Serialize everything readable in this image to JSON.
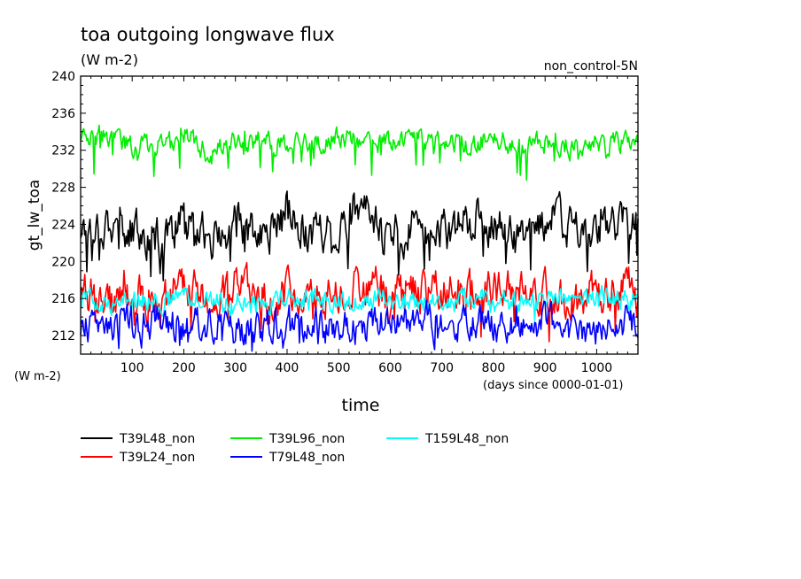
{
  "title": "toa outgoing longwave flux",
  "subtitle": "(W m-2)",
  "run_label": "non_control-5N",
  "units_bottom_left": "(W m-2)",
  "x_units": "(days since 0000-01-01)",
  "chart_data": {
    "type": "line",
    "title": "toa outgoing longwave flux",
    "xlabel": "time",
    "ylabel": "gt_lw_toa",
    "xlim": [
      0,
      1080
    ],
    "ylim": [
      210,
      240
    ],
    "x_ticks": [
      100,
      200,
      300,
      400,
      500,
      600,
      700,
      800,
      900,
      1000
    ],
    "y_ticks": [
      212,
      216,
      220,
      224,
      228,
      232,
      236,
      240
    ],
    "legend_position": "bottom",
    "series": [
      {
        "name": "T39L48_non",
        "color": "#000000",
        "mean": 223.5,
        "amplitude": 2.0,
        "dips": 4.0,
        "x": [
          0,
          50,
          100,
          150,
          200,
          250,
          300,
          350,
          400,
          450,
          500,
          550,
          600,
          650,
          700,
          750,
          800,
          850,
          900,
          950,
          1000,
          1050,
          1080
        ],
        "values": [
          223.5,
          224.5,
          223,
          222.5,
          224.5,
          222,
          224,
          222.5,
          225,
          223,
          223.5,
          225,
          222.5,
          224,
          223,
          224.5,
          224,
          222.5,
          225,
          223.5,
          222.5,
          224.5,
          223.5
        ]
      },
      {
        "name": "T39L96_non",
        "color": "#00ee00",
        "mean": 233.0,
        "amplitude": 1.0,
        "dips": 3.5,
        "x": [
          0,
          50,
          100,
          150,
          200,
          250,
          300,
          350,
          400,
          450,
          500,
          550,
          600,
          650,
          700,
          750,
          800,
          850,
          900,
          950,
          1000,
          1050,
          1080
        ],
        "values": [
          233.5,
          233.5,
          232.5,
          232.5,
          234,
          231.5,
          233,
          233,
          233,
          232.5,
          233.5,
          233,
          233,
          233,
          233,
          232.5,
          233.5,
          232.5,
          233,
          232.5,
          233,
          233,
          232.5
        ]
      },
      {
        "name": "T39L24_non",
        "color": "#ff0000",
        "mean": 216.5,
        "amplitude": 2.0,
        "dips": 3.0,
        "x": [
          0,
          50,
          100,
          150,
          200,
          250,
          300,
          350,
          400,
          450,
          500,
          550,
          600,
          650,
          700,
          750,
          800,
          850,
          900,
          950,
          1000,
          1050,
          1080
        ],
        "values": [
          216.5,
          217,
          216,
          215.5,
          217,
          216,
          217.5,
          216,
          216.5,
          217,
          216.5,
          217.5,
          216,
          217,
          216.5,
          216,
          217,
          216.5,
          216,
          215.5,
          216.5,
          217,
          216.5
        ]
      },
      {
        "name": "T79L48_non",
        "color": "#0000ff",
        "mean": 213.0,
        "amplitude": 1.6,
        "dips": 2.0,
        "x": [
          0,
          50,
          100,
          150,
          200,
          250,
          300,
          350,
          400,
          450,
          500,
          550,
          600,
          650,
          700,
          750,
          800,
          850,
          900,
          950,
          1000,
          1050,
          1080
        ],
        "values": [
          212.5,
          213.5,
          213,
          214,
          213,
          213.5,
          212.5,
          213,
          213.5,
          213,
          213,
          212.5,
          213.5,
          213.5,
          214,
          213.5,
          213,
          213,
          213.5,
          212.5,
          213,
          213.5,
          213
        ]
      },
      {
        "name": "T159L48_non",
        "color": "#00ffff",
        "mean": 215.8,
        "amplitude": 1.0,
        "dips": 1.2,
        "x": [
          0,
          50,
          100,
          150,
          200,
          250,
          300,
          350,
          400,
          450,
          500,
          550,
          600,
          650,
          700,
          750,
          800,
          850,
          900,
          950,
          1000,
          1050,
          1080
        ],
        "values": [
          216,
          215.5,
          216,
          215.5,
          216.5,
          216,
          216,
          215.5,
          216,
          216,
          215.5,
          216,
          215.5,
          215.5,
          216,
          216,
          215.5,
          215.5,
          216,
          216,
          216.5,
          216,
          216
        ]
      }
    ]
  }
}
